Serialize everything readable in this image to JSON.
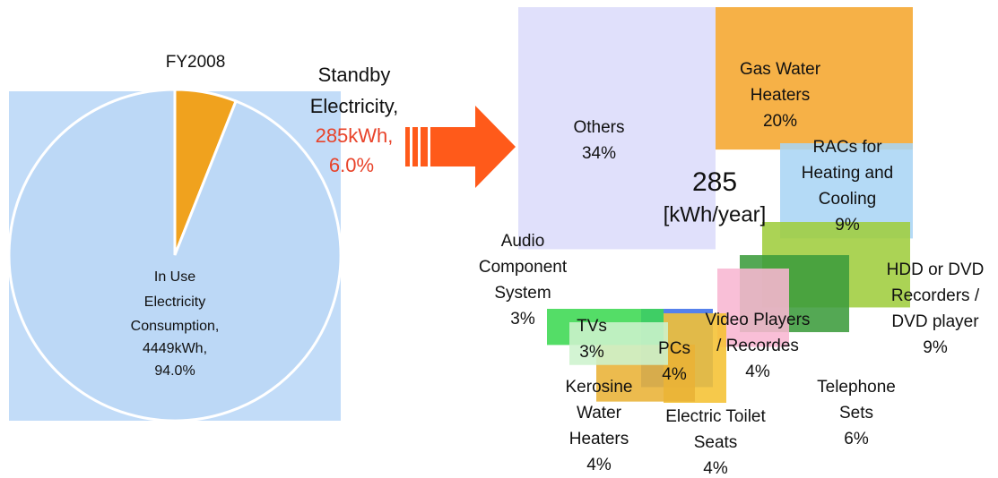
{
  "chart_data": [
    {
      "type": "pie",
      "title": "FY2008",
      "categories": [
        [
          "In Use",
          "Electricity",
          "Consumption,"
        ],
        [
          "Standby",
          "Electricity,"
        ]
      ],
      "values": [
        94.0,
        6.0
      ],
      "value_labels": [
        "94.0%",
        "6.0%"
      ],
      "energy_labels": [
        "4449kWh,",
        "285kWh,"
      ],
      "colors": [
        "#bcd8f6",
        "#f0a21e"
      ]
    },
    {
      "type": "treemap",
      "title": "285",
      "subtitle": "[kWh/year]",
      "categories": [
        [
          "Others"
        ],
        [
          "Gas Water",
          "Heaters"
        ],
        [
          "RACs for",
          "Heating and",
          "Cooling"
        ],
        [
          "HDD or DVD",
          "Recorders /",
          "DVD player"
        ],
        [
          "Telephone",
          "Sets"
        ],
        [
          "Video Players",
          "/ Recordes"
        ],
        [
          "Electric Toilet",
          "Seats"
        ],
        [
          "PCs"
        ],
        [
          "Kerosine",
          "Water",
          "Heaters"
        ],
        [
          "TVs"
        ],
        [
          "Audio",
          "Component",
          "System"
        ]
      ],
      "values": [
        34,
        20,
        9,
        9,
        6,
        4,
        4,
        4,
        4,
        3,
        3
      ],
      "value_labels": [
        "34%",
        "20%",
        "9%",
        "9%",
        "6%",
        "4%",
        "4%",
        "4%",
        "4%",
        "3%",
        "3%"
      ],
      "colors": [
        "#dcdcfa",
        "#f5a62e",
        "#aad5f5",
        "#9fcd3e",
        "#3c9c3c",
        "#f8b6d2",
        "#3d70e8",
        "#f5c232",
        "#e9b235",
        "#3cd852",
        "#cdf2cd"
      ]
    }
  ]
}
